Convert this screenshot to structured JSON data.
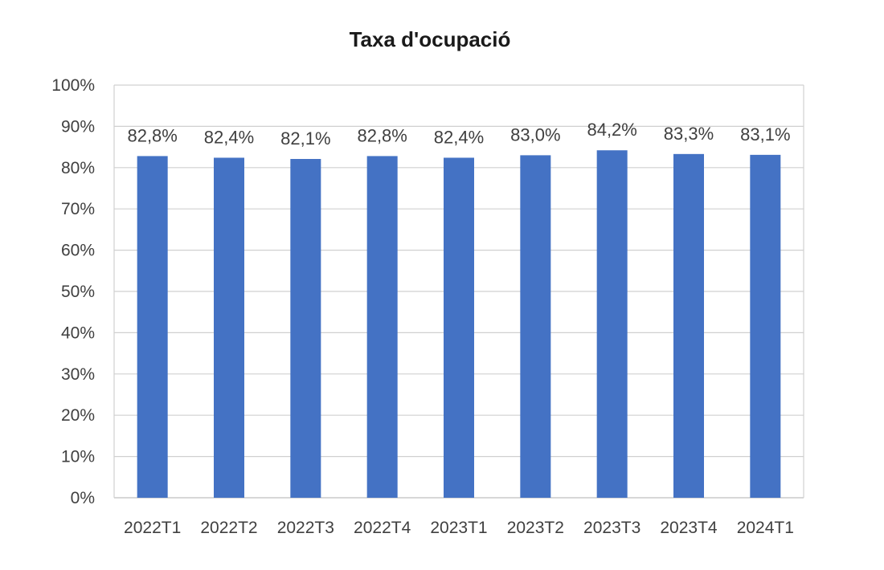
{
  "chart_data": {
    "type": "bar",
    "title": "Taxa d'ocupació",
    "xlabel": "",
    "ylabel": "",
    "categories": [
      "2022T1",
      "2022T2",
      "2022T3",
      "2022T4",
      "2023T1",
      "2023T2",
      "2023T3",
      "2023T4",
      "2024T1"
    ],
    "values": [
      82.8,
      82.4,
      82.1,
      82.8,
      82.4,
      83.0,
      84.2,
      83.3,
      83.1
    ],
    "data_labels": [
      "82,8%",
      "82,4%",
      "82,1%",
      "82,8%",
      "82,4%",
      "83,0%",
      "84,2%",
      "83,3%",
      "83,1%"
    ],
    "ylim": [
      0,
      100
    ],
    "yticks": [
      0,
      10,
      20,
      30,
      40,
      50,
      60,
      70,
      80,
      90,
      100
    ],
    "ytick_labels": [
      "0%",
      "10%",
      "20%",
      "30%",
      "40%",
      "50%",
      "60%",
      "70%",
      "80%",
      "90%",
      "100%"
    ],
    "grid": true,
    "legend": "none",
    "colors": {
      "bar": "#4472C4",
      "grid": "#d0d0d0",
      "axis": "#bfbfbf"
    }
  }
}
